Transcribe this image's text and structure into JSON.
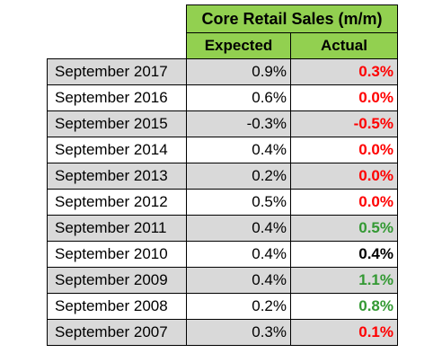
{
  "title": "Core Retail Sales (m/m)",
  "columns": {
    "expected": "Expected",
    "actual": "Actual"
  },
  "colors": {
    "header_green": "#92d050",
    "row_gray": "#d9d9d9",
    "red": "#ff0000",
    "green": "#339933",
    "black": "#000000"
  },
  "rows": [
    {
      "label": "September 2017",
      "expected": "0.9%",
      "actual": "0.3%",
      "actual_color": "red"
    },
    {
      "label": "September 2016",
      "expected": "0.6%",
      "actual": "0.0%",
      "actual_color": "red"
    },
    {
      "label": "September 2015",
      "expected": "-0.3%",
      "actual": "-0.5%",
      "actual_color": "red"
    },
    {
      "label": "September 2014",
      "expected": "0.4%",
      "actual": "0.0%",
      "actual_color": "red"
    },
    {
      "label": "September 2013",
      "expected": "0.2%",
      "actual": "0.0%",
      "actual_color": "red"
    },
    {
      "label": "September 2012",
      "expected": "0.5%",
      "actual": "0.0%",
      "actual_color": "red"
    },
    {
      "label": "September 2011",
      "expected": "0.4%",
      "actual": "0.5%",
      "actual_color": "green"
    },
    {
      "label": "September 2010",
      "expected": "0.4%",
      "actual": "0.4%",
      "actual_color": "black"
    },
    {
      "label": "September 2009",
      "expected": "0.4%",
      "actual": "1.1%",
      "actual_color": "green"
    },
    {
      "label": "September 2008",
      "expected": "0.2%",
      "actual": "0.8%",
      "actual_color": "green"
    },
    {
      "label": "September 2007",
      "expected": "0.3%",
      "actual": "0.1%",
      "actual_color": "red"
    }
  ]
}
